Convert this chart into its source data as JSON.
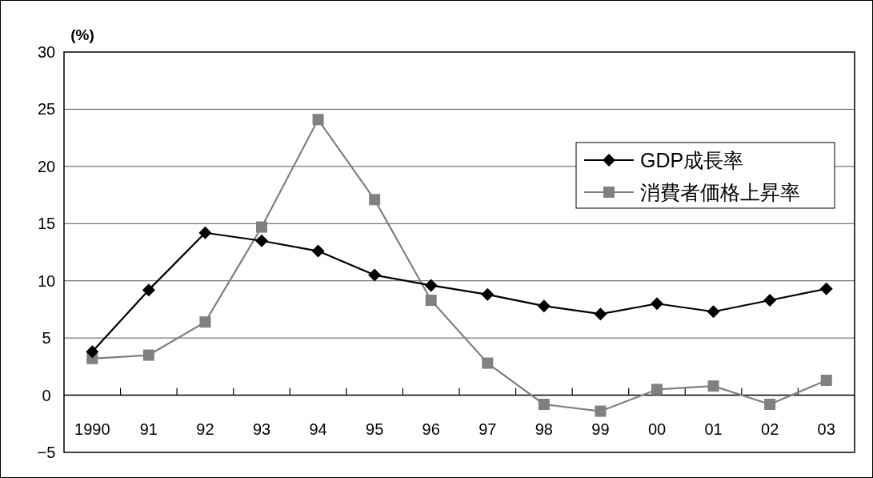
{
  "chart_data": {
    "type": "line",
    "ylabel": "(%)",
    "categories": [
      "1990",
      "91",
      "92",
      "93",
      "94",
      "95",
      "96",
      "97",
      "98",
      "99",
      "00",
      "01",
      "02",
      "03"
    ],
    "series": [
      {
        "name": "GDP成長率",
        "color": "#000000",
        "marker": "diamond",
        "values": [
          3.8,
          9.2,
          14.2,
          13.5,
          12.6,
          10.5,
          9.6,
          8.8,
          7.8,
          7.1,
          8.0,
          7.3,
          8.3,
          9.3
        ]
      },
      {
        "name": "消費者価格上昇率",
        "color": "#808080",
        "marker": "square",
        "values": [
          3.2,
          3.5,
          6.4,
          14.7,
          24.1,
          17.1,
          8.3,
          2.8,
          -0.8,
          -1.4,
          0.5,
          0.8,
          -0.8,
          1.3
        ]
      }
    ],
    "ylim": [
      -5,
      30
    ],
    "yticks": [
      {
        "value": -5,
        "label": "−5"
      },
      0,
      5,
      10,
      15,
      20,
      25,
      30
    ],
    "grid": "y",
    "legend": "top right",
    "line_style": "solid"
  }
}
